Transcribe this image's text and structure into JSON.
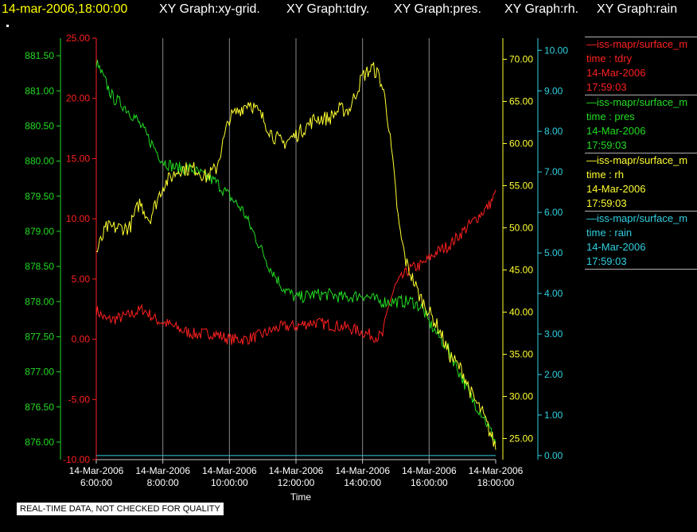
{
  "header": {
    "timestamp": "14-mar-2006,18:00:00",
    "graphs": [
      "XY Graph:xy-grid.",
      "XY Graph:tdry.",
      "XY Graph:pres.",
      "XY Graph:rh.",
      "XY Graph:rain"
    ]
  },
  "notice": "REAL-TIME DATA, NOT CHECKED FOR QUALITY",
  "legend": [
    {
      "name": "—iss-mapr/surface_m",
      "field": "time : tdry",
      "date": "14-Mar-2006",
      "time": "17:59:03",
      "color": "#ff2020"
    },
    {
      "name": "—iss-mapr/surface_m",
      "field": "time : pres",
      "date": "14-Mar-2006",
      "time": "17:59:03",
      "color": "#22dd22"
    },
    {
      "name": "—iss-mapr/surface_m",
      "field": "time : rh",
      "date": "14-Mar-2006",
      "time": "17:59:03",
      "color": "#ffff30"
    },
    {
      "name": "—iss-mapr/surface_m",
      "field": "time : rain",
      "date": "14-Mar-2006",
      "time": "17:59:03",
      "color": "#30d0e0"
    }
  ],
  "chart_data": {
    "type": "line",
    "xlabel": "Time",
    "x_ticks": [
      {
        "date": "14-Mar-2006",
        "time": "6:00:00",
        "hour": 6
      },
      {
        "date": "14-Mar-2006",
        "time": "8:00:00",
        "hour": 8
      },
      {
        "date": "14-Mar-2006",
        "time": "10:00:00",
        "hour": 10
      },
      {
        "date": "14-Mar-2006",
        "time": "12:00:00",
        "hour": 12
      },
      {
        "date": "14-Mar-2006",
        "time": "14:00:00",
        "hour": 14
      },
      {
        "date": "14-Mar-2006",
        "time": "16:00:00",
        "hour": 16
      },
      {
        "date": "14-Mar-2006",
        "time": "18:00:00",
        "hour": 18
      }
    ],
    "xlim": [
      6,
      18
    ],
    "grid": true,
    "axes": [
      {
        "id": "pres",
        "side": "left-outer",
        "color": "#22dd22",
        "ylim": [
          875.75,
          881.75
        ],
        "ticks": [
          "876.00",
          "876.50",
          "877.00",
          "877.50",
          "878.00",
          "878.50",
          "879.00",
          "879.50",
          "880.00",
          "880.50",
          "881.00",
          "881.50"
        ]
      },
      {
        "id": "tdry",
        "side": "left-inner",
        "color": "#ff2020",
        "ylim": [
          -10,
          25
        ],
        "ticks": [
          "-10.00",
          "-5.00",
          "0.00",
          "5.00",
          "10.00",
          "15.00",
          "20.00",
          "25.00"
        ]
      },
      {
        "id": "rh",
        "side": "right-inner",
        "color": "#ffff30",
        "ylim": [
          22.5,
          72.5
        ],
        "ticks": [
          "25.00",
          "30.00",
          "35.00",
          "40.00",
          "45.00",
          "50.00",
          "55.00",
          "60.00",
          "65.00",
          "70.00"
        ]
      },
      {
        "id": "rain",
        "side": "right-outer",
        "color": "#30d0e0",
        "ylim": [
          -0.1,
          10.3
        ],
        "ticks": [
          "0.00",
          "1.00",
          "2.00",
          "3.00",
          "4.00",
          "5.00",
          "6.00",
          "7.00",
          "8.00",
          "9.00",
          "10.00"
        ]
      }
    ],
    "series": [
      {
        "field": "tdry",
        "axis": "tdry",
        "color": "#ff2020",
        "x": [
          6,
          6.3,
          6.6,
          7,
          7.4,
          7.8,
          8.2,
          8.6,
          9,
          9.5,
          10,
          10.5,
          11,
          11.5,
          12,
          12.5,
          13,
          13.5,
          14,
          14.4,
          14.6,
          14.8,
          15,
          15.4,
          15.8,
          16.2,
          16.6,
          17,
          17.4,
          17.8,
          18
        ],
        "y": [
          2.4,
          1.6,
          1.7,
          2,
          2.5,
          1.6,
          1.2,
          0.7,
          0.4,
          0.5,
          0,
          0,
          0.4,
          1,
          1.1,
          1.4,
          1.2,
          1,
          0.6,
          0.2,
          0.3,
          3,
          4.5,
          5.8,
          6.2,
          7.2,
          7.8,
          8.9,
          10,
          11.1,
          12.1
        ]
      },
      {
        "field": "pres",
        "axis": "pres",
        "color": "#22dd22",
        "x": [
          6,
          6.2,
          6.5,
          6.8,
          7.2,
          7.6,
          8,
          8.4,
          8.8,
          9.2,
          9.6,
          10,
          10.4,
          10.8,
          11.2,
          11.6,
          12,
          12.5,
          13,
          13.5,
          14,
          14.5,
          15,
          15.5,
          15.8,
          16,
          16.3,
          16.6,
          17,
          17.3,
          17.6,
          18
        ],
        "y": [
          881.4,
          881.2,
          880.9,
          880.8,
          880.6,
          880.3,
          880.0,
          879.9,
          879.9,
          879.8,
          879.7,
          879.5,
          879.3,
          878.9,
          878.5,
          878.2,
          878.05,
          878.1,
          878.1,
          878.05,
          878.1,
          878.0,
          878.0,
          878.0,
          877.9,
          877.7,
          877.5,
          877.3,
          876.9,
          876.6,
          876.4,
          876.0
        ]
      },
      {
        "field": "rh",
        "axis": "rh",
        "color": "#ffff30",
        "x": [
          6,
          6.3,
          6.6,
          7,
          7.3,
          7.6,
          8,
          8.5,
          9,
          9.3,
          9.6,
          10,
          10.3,
          10.6,
          11,
          11.3,
          11.6,
          12,
          12.3,
          12.6,
          13,
          13.3,
          13.6,
          14,
          14.3,
          14.5,
          14.7,
          14.9,
          15.1,
          15.3,
          15.5,
          15.7,
          16,
          16.3,
          16.6,
          17,
          17.3,
          17.6,
          18
        ],
        "y": [
          47,
          50,
          50,
          50,
          53,
          51,
          55,
          57,
          57,
          56,
          57,
          63,
          64,
          65,
          63,
          61,
          60,
          61,
          62,
          63,
          63,
          64,
          64,
          68,
          69,
          68,
          65,
          58,
          50,
          46,
          44,
          42,
          40,
          38,
          35,
          33,
          30,
          28,
          24
        ]
      },
      {
        "field": "rain",
        "axis": "rain",
        "color": "#30d0e0",
        "x": [
          6,
          18
        ],
        "y": [
          0,
          0
        ]
      }
    ]
  }
}
